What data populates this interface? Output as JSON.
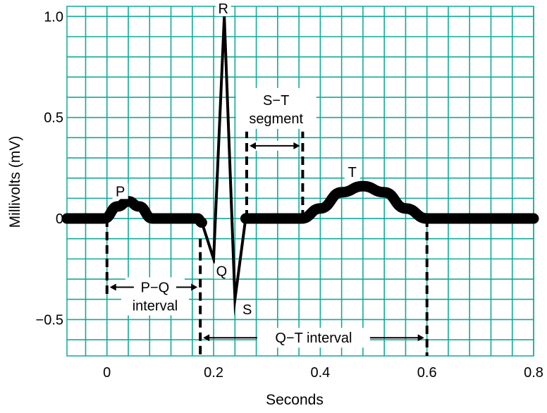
{
  "chart_data": {
    "type": "line",
    "title": "",
    "xlabel": "Seconds",
    "ylabel": "Millivolts (mV)",
    "xlim": [
      -0.075,
      0.8
    ],
    "ylim": [
      -0.68,
      1.05
    ],
    "x_ticks": [
      {
        "value": 0,
        "label": "0"
      },
      {
        "value": 0.2,
        "label": "0.2"
      },
      {
        "value": 0.4,
        "label": "0.4"
      },
      {
        "value": 0.6,
        "label": "0.6"
      },
      {
        "value": 0.8,
        "label": "0.8"
      }
    ],
    "y_ticks": [
      {
        "value": 1.0,
        "label": "1.0"
      },
      {
        "value": 0.5,
        "label": "0.5"
      },
      {
        "value": 0,
        "label": "0"
      },
      {
        "value": -0.5,
        "label": "−0.5"
      }
    ],
    "grid": true,
    "grid_color": "#12a99a",
    "background_color": "#ffffff",
    "trace_color": "#000000",
    "series": [
      {
        "x": [
          -0.075,
          -0.005,
          0.02,
          0.04,
          0.06,
          0.085,
          0.17,
          0.178,
          0.2,
          0.22,
          0.24,
          0.26,
          0.365,
          0.4,
          0.44,
          0.48,
          0.52,
          0.56,
          0.6,
          0.8
        ],
        "y": [
          0,
          0,
          0.06,
          0.085,
          0.06,
          0,
          0,
          -0.02,
          -0.2,
          1.0,
          -0.4,
          0,
          0,
          0.05,
          0.13,
          0.16,
          0.13,
          0.05,
          0,
          0
        ]
      }
    ],
    "wave_labels": [
      {
        "text": "P",
        "x": 0.025,
        "y": 0.135
      },
      {
        "text": "Q",
        "x": 0.215,
        "y": -0.26
      },
      {
        "text": "R",
        "x": 0.218,
        "y": 1.04
      },
      {
        "text": "S",
        "x": 0.263,
        "y": -0.45
      },
      {
        "text": "T",
        "x": 0.46,
        "y": 0.23
      }
    ],
    "markers": [
      {
        "x": 0,
        "y_from": 0,
        "y_to": -0.39
      },
      {
        "x": 0.175,
        "y_from": -0.1,
        "y_to": -0.68
      },
      {
        "x": 0.262,
        "y_from": 0,
        "y_to": 0.43
      },
      {
        "x": 0.367,
        "y_from": 0,
        "y_to": 0.43
      },
      {
        "x": 0.6,
        "y_from": 0,
        "y_to": -0.68
      }
    ],
    "intervals": [
      {
        "label_lines": [
          "P−Q",
          "interval"
        ],
        "x_start": 0,
        "x_end": 0.175,
        "y": -0.34
      },
      {
        "label_lines": [
          "S−T",
          "segment"
        ],
        "x_start": 0.262,
        "x_end": 0.367,
        "y": 0.36
      },
      {
        "label_lines": [
          "Q−T interval"
        ],
        "x_start": 0.175,
        "x_end": 0.6,
        "y": -0.59
      }
    ]
  }
}
